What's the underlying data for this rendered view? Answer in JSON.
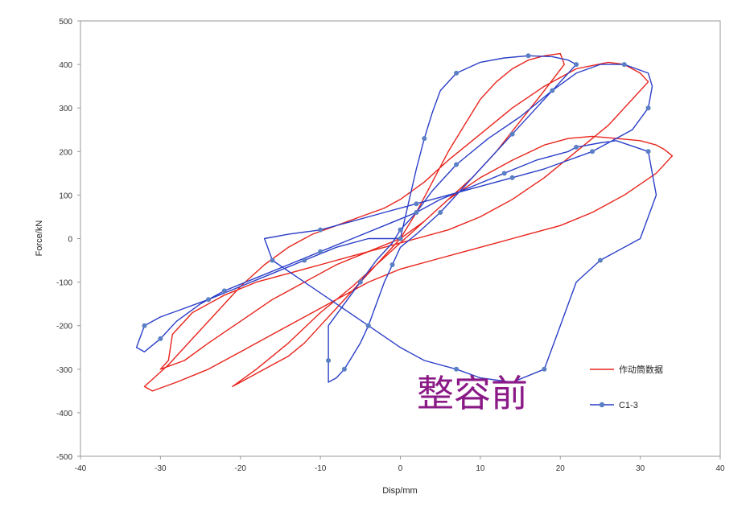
{
  "chart_data": {
    "type": "line",
    "title": "",
    "xlabel": "Disp/mm",
    "ylabel": "Force/kN",
    "xlim": [
      -40,
      40
    ],
    "ylim": [
      -500,
      500
    ],
    "xticks": [
      -40,
      -30,
      -20,
      -10,
      0,
      10,
      20,
      30,
      40
    ],
    "yticks": [
      -500,
      -400,
      -300,
      -200,
      -100,
      0,
      100,
      200,
      300,
      400,
      500
    ],
    "grid": false,
    "legend_position": "right",
    "annotation": "整容前",
    "colors": {
      "actuator": "#e8241c",
      "specimen": "#2b3fc8",
      "marker": "#5a7fc4"
    },
    "series": [
      {
        "name": "作动筒数据",
        "style": "line",
        "color": "#e8241c",
        "x": [
          0,
          2,
          4,
          6,
          8,
          10,
          12,
          14,
          16,
          18,
          20,
          20.5,
          18,
          15,
          12,
          9,
          6,
          3,
          0,
          -2,
          -4,
          -6,
          -8,
          -10,
          -12,
          -14,
          -17,
          -20,
          -21,
          -18,
          -14,
          -10,
          -6,
          -3,
          0,
          3,
          6,
          10,
          14,
          18,
          21,
          24,
          27,
          30,
          32,
          33,
          34,
          32,
          28,
          24,
          20,
          16,
          12,
          8,
          4,
          0,
          -4,
          -8,
          -12,
          -16,
          -20,
          -24,
          -28,
          -31,
          -32,
          -29,
          -26,
          -23,
          -20,
          -17,
          -14,
          -11,
          -8,
          -5,
          -2,
          0,
          3,
          6,
          10,
          14,
          18,
          22,
          26,
          28,
          29,
          30,
          31,
          29,
          26,
          22,
          18,
          14,
          10,
          6,
          2,
          -2,
          -6,
          -10,
          -14,
          -18,
          -22,
          -26,
          -28.5,
          -29,
          -30,
          -27,
          -24,
          -20,
          -16,
          -12,
          -8,
          -4,
          0
        ],
        "y": [
          0,
          60,
          130,
          200,
          260,
          320,
          360,
          390,
          410,
          420,
          425,
          400,
          340,
          270,
          200,
          140,
          90,
          40,
          0,
          -40,
          -80,
          -120,
          -160,
          -200,
          -240,
          -270,
          -300,
          -330,
          -340,
          -300,
          -240,
          -170,
          -110,
          -60,
          -10,
          40,
          90,
          140,
          180,
          215,
          230,
          235,
          230,
          225,
          215,
          205,
          190,
          150,
          100,
          60,
          30,
          10,
          -10,
          -30,
          -50,
          -70,
          -100,
          -140,
          -180,
          -220,
          -260,
          -300,
          -330,
          -350,
          -340,
          -290,
          -230,
          -170,
          -110,
          -60,
          -20,
          10,
          30,
          50,
          70,
          90,
          130,
          180,
          240,
          300,
          350,
          390,
          405,
          400,
          390,
          380,
          360,
          320,
          260,
          200,
          140,
          90,
          50,
          20,
          0,
          -20,
          -40,
          -60,
          -80,
          -100,
          -130,
          -170,
          -220,
          -280,
          -300,
          -280,
          -240,
          -190,
          -140,
          -100,
          -60,
          -30,
          0
        ]
      },
      {
        "name": "C1-3",
        "style": "line-markers",
        "color": "#2b3fc8",
        "x": [
          0,
          1,
          2,
          3,
          4,
          5,
          7,
          10,
          13,
          16,
          19,
          21,
          22,
          20,
          17,
          14,
          11,
          8,
          5,
          2,
          0,
          -1,
          -2,
          -3,
          -4,
          -5,
          -6,
          -7,
          -8,
          -9,
          -9,
          -9,
          -7,
          -5,
          -3,
          -1,
          0,
          2,
          4,
          7,
          11,
          15,
          19,
          22,
          25,
          28,
          31,
          31.5,
          31,
          29,
          26,
          24,
          21,
          18,
          14,
          10,
          6,
          2,
          -2,
          -6,
          -10,
          -14,
          -17,
          -16,
          -12,
          -8,
          -4,
          0,
          3,
          7,
          10,
          14,
          18,
          20,
          22,
          25,
          30,
          32,
          31,
          27,
          25,
          22,
          21,
          17,
          13,
          9,
          5,
          2,
          -2,
          -6,
          -10,
          -14,
          -18,
          -22,
          -25,
          -28,
          -30,
          -32,
          -33,
          -32,
          -30,
          -27,
          -24,
          -20,
          -16,
          -12,
          -8,
          -4,
          0
        ],
        "y": [
          0,
          80,
          160,
          230,
          290,
          340,
          380,
          405,
          415,
          420,
          418,
          410,
          400,
          360,
          300,
          240,
          180,
          120,
          60,
          10,
          -20,
          -60,
          -100,
          -150,
          -200,
          -240,
          -270,
          -300,
          -320,
          -330,
          -280,
          -200,
          -150,
          -100,
          -50,
          -10,
          20,
          60,
          110,
          170,
          230,
          280,
          340,
          380,
          400,
          400,
          380,
          350,
          300,
          250,
          220,
          200,
          180,
          160,
          140,
          120,
          100,
          80,
          60,
          40,
          20,
          10,
          0,
          -50,
          -100,
          -150,
          -200,
          -250,
          -280,
          -300,
          -320,
          -330,
          -300,
          -200,
          -100,
          -50,
          0,
          100,
          200,
          225,
          220,
          210,
          200,
          180,
          150,
          120,
          90,
          60,
          30,
          0,
          -30,
          -60,
          -90,
          -120,
          -150,
          -190,
          -230,
          -260,
          -250,
          -200,
          -180,
          -160,
          -140,
          -110,
          -80,
          -50,
          -20,
          0,
          0
        ]
      }
    ]
  }
}
